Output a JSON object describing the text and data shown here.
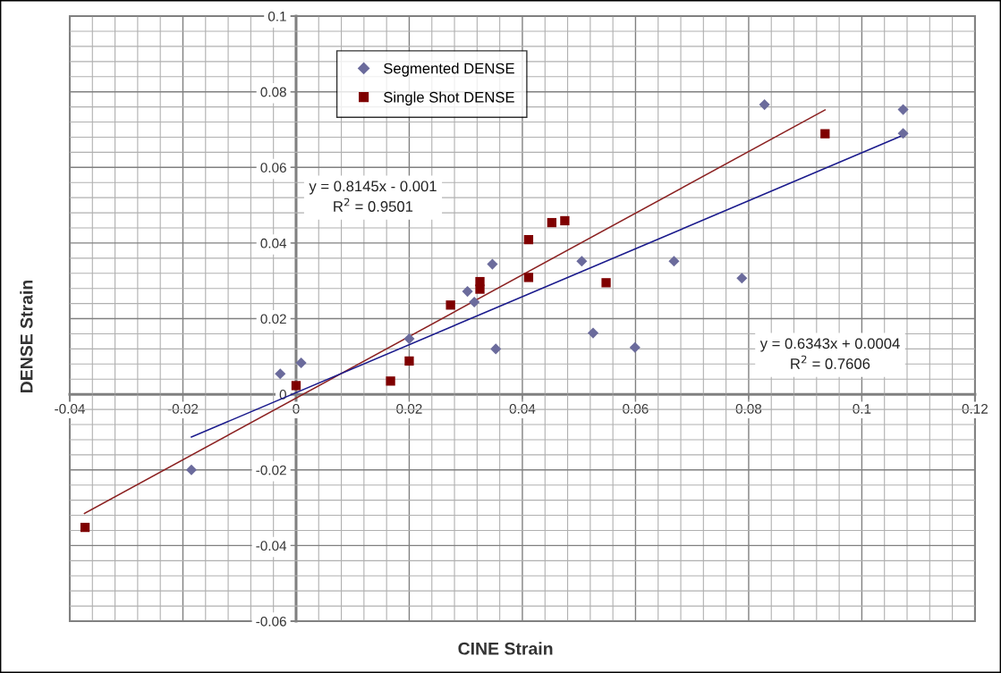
{
  "chart_data": {
    "type": "scatter",
    "xlabel": "CINE Strain",
    "ylabel": "DENSE Strain",
    "xlim": [
      -0.04,
      0.12
    ],
    "ylim": [
      -0.06,
      0.1
    ],
    "xticks": [
      -0.04,
      -0.02,
      0,
      0.02,
      0.04,
      0.06,
      0.08,
      0.1,
      0.12
    ],
    "yticks": [
      -0.06,
      -0.04,
      -0.02,
      0,
      0.02,
      0.04,
      0.06,
      0.08,
      0.1
    ],
    "grid": true,
    "legend": "top",
    "annotations": [
      "y = 0.8145x - 0.001\nR$^{2}$ = 0.9501",
      "y = 0.6343x + 0.0004\nR$^{2}$ = 0.7606"
    ],
    "series": [
      {
        "name": "Segmented DENSE",
        "marker": "diamond",
        "color": "#6b6b9c",
        "x": [
          -0.0185,
          -0.0028,
          0.0009,
          0.02,
          0.0303,
          0.0315,
          0.0347,
          0.0353,
          0.0505,
          0.0525,
          0.0599,
          0.0668,
          0.0788,
          0.0828,
          0.1073,
          0.1073
        ],
        "values": [
          -0.02,
          0.0054,
          0.0083,
          0.0147,
          0.0272,
          0.0244,
          0.0344,
          0.012,
          0.0352,
          0.0162,
          0.0124,
          0.0352,
          0.0307,
          0.0766,
          0.0753,
          0.069
        ]
      },
      {
        "name": "Single Shot DENSE",
        "marker": "square",
        "color": "#7f0000",
        "x": [
          -0.0373,
          0.0,
          0.0167,
          0.02,
          0.0273,
          0.0325,
          0.0325,
          0.0411,
          0.0411,
          0.0452,
          0.0475,
          0.0548,
          0.0935
        ],
        "values": [
          -0.0352,
          0.0023,
          0.0035,
          0.0088,
          0.0236,
          0.0298,
          0.0278,
          0.0409,
          0.0309,
          0.0454,
          0.0459,
          0.0295,
          0.0689
        ]
      },
      {
        "type": "line",
        "marker": "none",
        "line_style": "solid",
        "color": "#8b2020",
        "x": [
          -0.0374,
          0.0935
        ],
        "values": [
          -0.0315,
          0.0752
        ]
      },
      {
        "type": "line",
        "marker": "none",
        "line_style": "solid",
        "color": "#1a1a8c",
        "x": [
          -0.0185,
          0.1073
        ],
        "values": [
          -0.0113,
          0.0685
        ]
      }
    ]
  }
}
